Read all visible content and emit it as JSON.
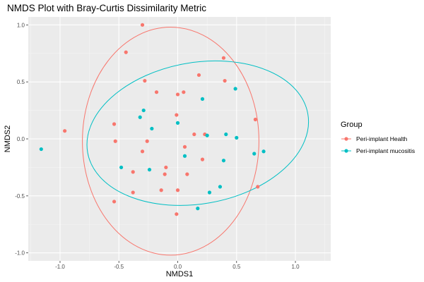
{
  "chart_data": {
    "type": "scatter",
    "title": "NMDS Plot with Bray-Curtis Dissimilarity Metric",
    "xlabel": "NMDS1",
    "ylabel": "NMDS2",
    "xlim": [
      -1.27,
      1.3
    ],
    "ylim": [
      -1.07,
      1.07
    ],
    "x_ticks": [
      -1.0,
      -0.5,
      0.0,
      0.5,
      1.0
    ],
    "x_tick_labels": [
      "-1.0",
      "-0.5",
      "0.0",
      "0.5",
      "1.0"
    ],
    "y_ticks": [
      -1.0,
      -0.5,
      0.0,
      0.5,
      1.0
    ],
    "y_tick_labels": [
      "-1.0",
      "-0.5",
      "0.0",
      "0.5",
      "1.0"
    ],
    "grid": true,
    "panel_background": "#ebebeb",
    "legend": {
      "title": "Group",
      "position": "right"
    },
    "series": [
      {
        "name": "Peri-implant Health",
        "color": "#f8766d",
        "points": [
          [
            -0.3,
            1.0
          ],
          [
            -0.44,
            0.76
          ],
          [
            0.39,
            0.71
          ],
          [
            0.18,
            0.56
          ],
          [
            -0.28,
            0.51
          ],
          [
            0.4,
            0.51
          ],
          [
            -0.18,
            0.41
          ],
          [
            0.05,
            0.41
          ],
          [
            0.0,
            0.39
          ],
          [
            -0.01,
            0.21
          ],
          [
            0.66,
            0.17
          ],
          [
            -0.96,
            0.07
          ],
          [
            -0.54,
            0.13
          ],
          [
            0.14,
            0.04
          ],
          [
            0.23,
            0.04
          ],
          [
            -0.26,
            -0.02
          ],
          [
            -0.53,
            -0.02
          ],
          [
            0.06,
            -0.07
          ],
          [
            -0.3,
            -0.11
          ],
          [
            0.21,
            -0.18
          ],
          [
            -0.1,
            -0.25
          ],
          [
            -0.38,
            -0.29
          ],
          [
            -0.11,
            -0.31
          ],
          [
            0.08,
            -0.31
          ],
          [
            -0.14,
            -0.45
          ],
          [
            0.0,
            -0.45
          ],
          [
            0.68,
            -0.42
          ],
          [
            -0.38,
            -0.47
          ],
          [
            -0.54,
            -0.55
          ],
          [
            -0.01,
            -0.66
          ]
        ]
      },
      {
        "name": "Peri-implant mucositis",
        "color": "#00bfc4",
        "points": [
          [
            -1.16,
            -0.09
          ],
          [
            0.49,
            0.44
          ],
          [
            0.21,
            0.35
          ],
          [
            -0.29,
            0.25
          ],
          [
            -0.32,
            0.19
          ],
          [
            0.0,
            0.14
          ],
          [
            -0.22,
            0.09
          ],
          [
            0.41,
            0.04
          ],
          [
            0.25,
            0.03
          ],
          [
            0.5,
            0.01
          ],
          [
            0.73,
            -0.11
          ],
          [
            0.65,
            -0.13
          ],
          [
            0.06,
            -0.15
          ],
          [
            0.39,
            -0.19
          ],
          [
            -0.48,
            -0.25
          ],
          [
            -0.24,
            -0.27
          ],
          [
            0.36,
            -0.42
          ],
          [
            0.27,
            -0.47
          ],
          [
            0.17,
            -0.61
          ]
        ]
      }
    ],
    "ellipses": [
      {
        "series": "Peri-implant Health",
        "center": [
          -0.06,
          -0.02
        ],
        "rx": 0.75,
        "ry": 1.0,
        "angle": 0
      },
      {
        "series": "Peri-implant mucositis",
        "center": [
          0.17,
          0.05
        ],
        "rx": 0.95,
        "ry": 0.62,
        "angle": -10
      }
    ]
  }
}
